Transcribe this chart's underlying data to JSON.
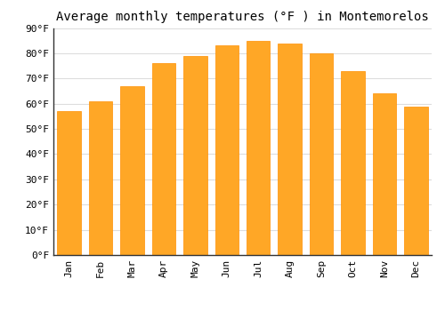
{
  "title": "Average monthly temperatures (°F ) in Montemorelos",
  "months": [
    "Jan",
    "Feb",
    "Mar",
    "Apr",
    "May",
    "Jun",
    "Jul",
    "Aug",
    "Sep",
    "Oct",
    "Nov",
    "Dec"
  ],
  "values": [
    57,
    61,
    67,
    76,
    79,
    83,
    85,
    84,
    80,
    73,
    64,
    59
  ],
  "bar_color": "#FFA726",
  "bar_edge_color": "#FF8F00",
  "background_color": "#FFFFFF",
  "grid_color": "#DDDDDD",
  "ylim": [
    0,
    90
  ],
  "yticks": [
    0,
    10,
    20,
    30,
    40,
    50,
    60,
    70,
    80,
    90
  ],
  "title_fontsize": 10,
  "tick_fontsize": 8,
  "font_family": "monospace",
  "bar_width": 0.75
}
